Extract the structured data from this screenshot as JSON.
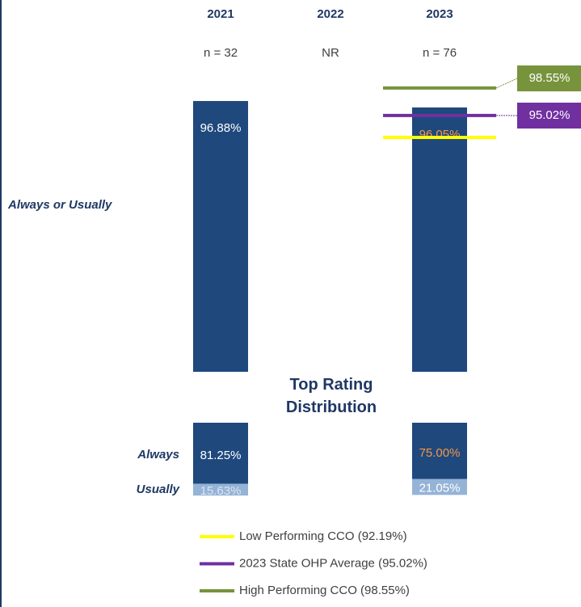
{
  "chart_data": {
    "type": "bar",
    "categories": [
      "2021",
      "2022",
      "2023"
    ],
    "n_labels": [
      "n = 32",
      "NR",
      "n = 76"
    ],
    "ylim": [
      62,
      100
    ],
    "series": [
      {
        "name": "Always or Usually",
        "color": "#1f497d",
        "values": [
          96.88,
          null,
          96.05
        ],
        "value_labels": [
          "96.88%",
          null,
          "96.05%"
        ],
        "label_colors": [
          "#ffffff",
          null,
          "#f79646"
        ]
      }
    ],
    "reference_lines": [
      {
        "name": "Low Performing CCO (92.19%)",
        "value": 92.19,
        "color": "#ffff00"
      },
      {
        "name": "2023 State OHP Average (95.02%)",
        "value": 95.02,
        "value_label": "95.02%",
        "color": "#7030a0"
      },
      {
        "name": "High Performing CCO (98.55%)",
        "value": 98.55,
        "value_label": "98.55%",
        "color": "#77933c"
      }
    ],
    "distribution": {
      "title": "Top Rating Distribution",
      "series": [
        {
          "name": "Always",
          "color": "#1f497d",
          "values": [
            81.25,
            null,
            75.0
          ],
          "value_labels": [
            "81.25%",
            null,
            "75.00%"
          ],
          "label_colors": [
            "#ffffff",
            null,
            "#f79646"
          ]
        },
        {
          "name": "Usually",
          "color": "#95b3d7",
          "values": [
            15.63,
            null,
            21.05
          ],
          "value_labels": [
            "15.63%",
            null,
            "21.05%"
          ],
          "label_colors": [
            "#dbe5f1",
            null,
            "#ffffff"
          ]
        }
      ]
    }
  }
}
